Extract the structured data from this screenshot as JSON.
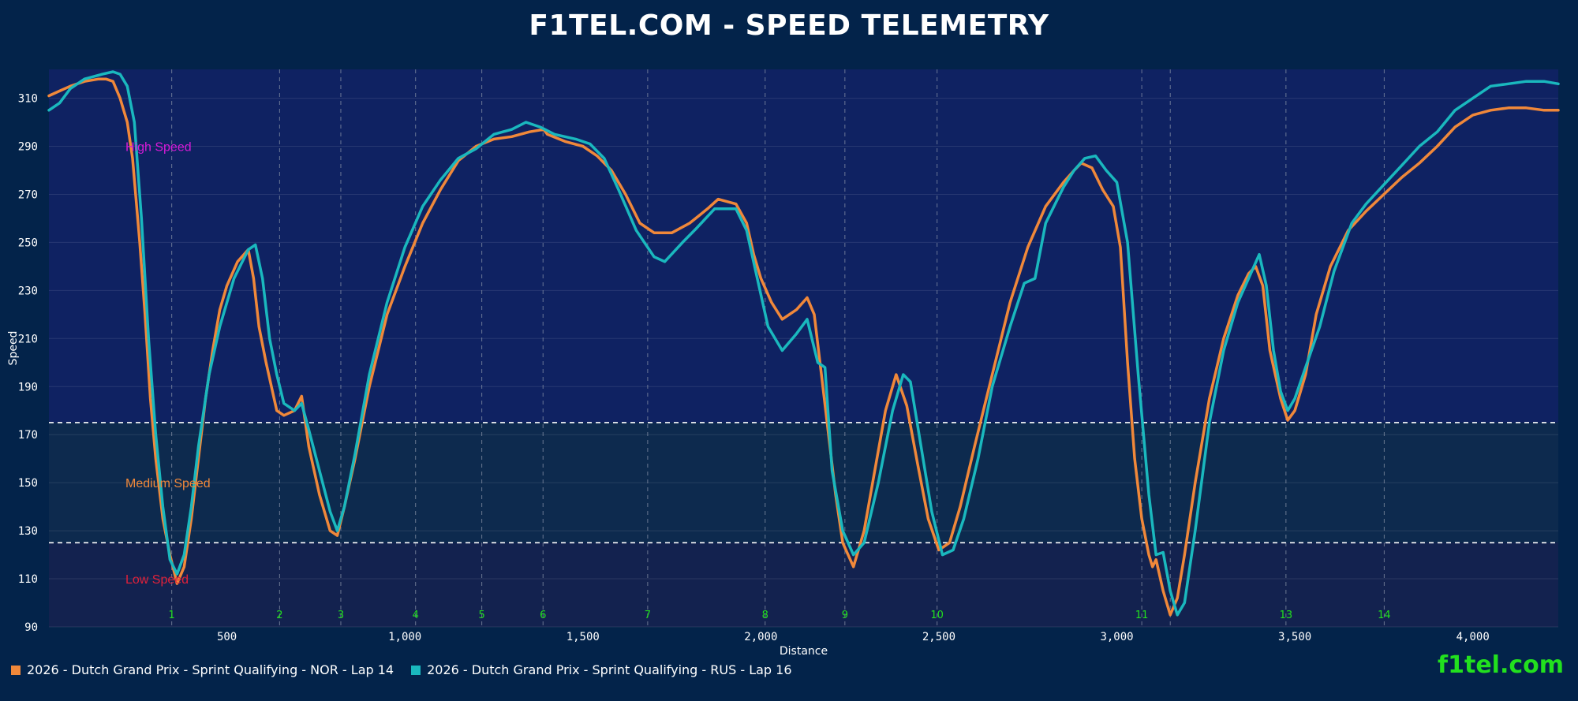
{
  "title": "F1TEL.COM - SPEED TELEMETRY",
  "brand": "f1tel.com",
  "colors": {
    "background": "#03234a",
    "plot_high": "#0f2262",
    "plot_medium": "#0d2a4e",
    "plot_low": "#13224f",
    "nor": "#f0883a",
    "rus": "#1ab8be",
    "corner": "#22e01e",
    "band_high": "#d81ad8",
    "band_medium": "#f0883a",
    "band_low": "#e0213a"
  },
  "chart_data": {
    "type": "line",
    "xlabel": "Distance",
    "ylabel": "Speed",
    "xlim": [
      0,
      4240
    ],
    "ylim": [
      90,
      322
    ],
    "x_ticks": [
      500,
      1000,
      1500,
      2000,
      2500,
      3000,
      3500,
      4000
    ],
    "x_tick_labels": [
      "500",
      "1,000",
      "1,500",
      "2,000",
      "2,500",
      "3,000",
      "3,500",
      "4,000"
    ],
    "y_ticks": [
      90,
      110,
      130,
      150,
      170,
      190,
      210,
      230,
      250,
      270,
      290,
      310
    ],
    "grid": true,
    "thresholds": [
      175,
      125
    ],
    "bands": [
      {
        "label": "High Speed",
        "y": 290,
        "x": 215
      },
      {
        "label": "Medium Speed",
        "y": 150,
        "x": 215
      },
      {
        "label": "Low Speed",
        "y": 110,
        "x": 215
      }
    ],
    "corners": [
      {
        "label": "1",
        "x": 345
      },
      {
        "label": "2",
        "x": 648
      },
      {
        "label": "3",
        "x": 820
      },
      {
        "label": "4",
        "x": 1030
      },
      {
        "label": "5",
        "x": 1216
      },
      {
        "label": "6",
        "x": 1388
      },
      {
        "label": "7",
        "x": 1682
      },
      {
        "label": "8",
        "x": 2012
      },
      {
        "label": "9",
        "x": 2236
      },
      {
        "label": "10",
        "x": 2495
      },
      {
        "label": "11",
        "x": 3070
      },
      {
        "label": "",
        "x": 3150
      },
      {
        "label": "13",
        "x": 3475
      },
      {
        "label": "14",
        "x": 3751
      }
    ],
    "legend": [
      "2026 - Dutch Grand Prix - Sprint Qualifying - NOR - Lap 14",
      "2026 - Dutch Grand Prix - Sprint Qualifying - RUS - Lap 16"
    ],
    "series": [
      {
        "name": "2026 - Dutch Grand Prix - Sprint Qualifying - NOR - Lap 14",
        "points": [
          [
            0,
            311
          ],
          [
            30,
            313
          ],
          [
            60,
            315
          ],
          [
            100,
            317
          ],
          [
            140,
            318
          ],
          [
            160,
            318
          ],
          [
            180,
            317
          ],
          [
            200,
            310
          ],
          [
            220,
            300
          ],
          [
            235,
            285
          ],
          [
            255,
            250
          ],
          [
            270,
            220
          ],
          [
            285,
            185
          ],
          [
            300,
            160
          ],
          [
            320,
            135
          ],
          [
            340,
            120
          ],
          [
            360,
            108
          ],
          [
            380,
            115
          ],
          [
            400,
            135
          ],
          [
            420,
            160
          ],
          [
            440,
            185
          ],
          [
            460,
            205
          ],
          [
            480,
            222
          ],
          [
            500,
            232
          ],
          [
            530,
            242
          ],
          [
            560,
            247
          ],
          [
            575,
            235
          ],
          [
            590,
            215
          ],
          [
            610,
            200
          ],
          [
            640,
            180
          ],
          [
            660,
            178
          ],
          [
            690,
            180
          ],
          [
            710,
            186
          ],
          [
            730,
            165
          ],
          [
            760,
            145
          ],
          [
            790,
            130
          ],
          [
            810,
            128
          ],
          [
            830,
            140
          ],
          [
            860,
            160
          ],
          [
            900,
            190
          ],
          [
            950,
            220
          ],
          [
            1000,
            240
          ],
          [
            1050,
            258
          ],
          [
            1100,
            272
          ],
          [
            1150,
            284
          ],
          [
            1200,
            290
          ],
          [
            1250,
            293
          ],
          [
            1300,
            294
          ],
          [
            1350,
            296
          ],
          [
            1390,
            297
          ],
          [
            1400,
            295
          ],
          [
            1450,
            292
          ],
          [
            1500,
            290
          ],
          [
            1540,
            286
          ],
          [
            1580,
            280
          ],
          [
            1620,
            270
          ],
          [
            1660,
            258
          ],
          [
            1700,
            254
          ],
          [
            1750,
            254
          ],
          [
            1800,
            258
          ],
          [
            1850,
            264
          ],
          [
            1880,
            268
          ],
          [
            1930,
            266
          ],
          [
            1960,
            258
          ],
          [
            1980,
            245
          ],
          [
            2000,
            235
          ],
          [
            2030,
            225
          ],
          [
            2060,
            218
          ],
          [
            2100,
            222
          ],
          [
            2130,
            227
          ],
          [
            2150,
            220
          ],
          [
            2170,
            195
          ],
          [
            2190,
            170
          ],
          [
            2210,
            145
          ],
          [
            2230,
            125
          ],
          [
            2260,
            115
          ],
          [
            2290,
            130
          ],
          [
            2320,
            155
          ],
          [
            2350,
            180
          ],
          [
            2380,
            195
          ],
          [
            2410,
            182
          ],
          [
            2440,
            158
          ],
          [
            2470,
            135
          ],
          [
            2500,
            122
          ],
          [
            2530,
            125
          ],
          [
            2560,
            140
          ],
          [
            2600,
            165
          ],
          [
            2650,
            195
          ],
          [
            2700,
            225
          ],
          [
            2750,
            248
          ],
          [
            2800,
            265
          ],
          [
            2850,
            275
          ],
          [
            2880,
            280
          ],
          [
            2900,
            283
          ],
          [
            2930,
            281
          ],
          [
            2960,
            272
          ],
          [
            2990,
            265
          ],
          [
            3010,
            248
          ],
          [
            3030,
            200
          ],
          [
            3050,
            160
          ],
          [
            3070,
            135
          ],
          [
            3090,
            120
          ],
          [
            3100,
            115
          ],
          [
            3110,
            118
          ],
          [
            3130,
            105
          ],
          [
            3150,
            95
          ],
          [
            3170,
            102
          ],
          [
            3190,
            120
          ],
          [
            3220,
            150
          ],
          [
            3260,
            185
          ],
          [
            3300,
            210
          ],
          [
            3340,
            228
          ],
          [
            3370,
            237
          ],
          [
            3390,
            240
          ],
          [
            3410,
            232
          ],
          [
            3430,
            205
          ],
          [
            3460,
            185
          ],
          [
            3480,
            176
          ],
          [
            3500,
            180
          ],
          [
            3530,
            195
          ],
          [
            3560,
            220
          ],
          [
            3600,
            240
          ],
          [
            3650,
            255
          ],
          [
            3700,
            263
          ],
          [
            3750,
            270
          ],
          [
            3800,
            277
          ],
          [
            3850,
            283
          ],
          [
            3900,
            290
          ],
          [
            3950,
            298
          ],
          [
            4000,
            303
          ],
          [
            4050,
            305
          ],
          [
            4100,
            306
          ],
          [
            4150,
            306
          ],
          [
            4200,
            305
          ],
          [
            4240,
            305
          ]
        ]
      },
      {
        "name": "2026 - Dutch Grand Prix - Sprint Qualifying - RUS - Lap 16",
        "points": [
          [
            0,
            305
          ],
          [
            30,
            308
          ],
          [
            60,
            314
          ],
          [
            100,
            318
          ],
          [
            150,
            320
          ],
          [
            180,
            321
          ],
          [
            200,
            320
          ],
          [
            220,
            315
          ],
          [
            240,
            300
          ],
          [
            260,
            260
          ],
          [
            280,
            210
          ],
          [
            300,
            170
          ],
          [
            320,
            140
          ],
          [
            340,
            118
          ],
          [
            360,
            112
          ],
          [
            380,
            120
          ],
          [
            400,
            140
          ],
          [
            420,
            165
          ],
          [
            450,
            195
          ],
          [
            480,
            215
          ],
          [
            520,
            235
          ],
          [
            560,
            247
          ],
          [
            580,
            249
          ],
          [
            600,
            235
          ],
          [
            620,
            210
          ],
          [
            640,
            195
          ],
          [
            660,
            183
          ],
          [
            690,
            180
          ],
          [
            710,
            183
          ],
          [
            730,
            172
          ],
          [
            760,
            155
          ],
          [
            790,
            138
          ],
          [
            810,
            130
          ],
          [
            830,
            140
          ],
          [
            860,
            162
          ],
          [
            900,
            195
          ],
          [
            950,
            225
          ],
          [
            1000,
            248
          ],
          [
            1050,
            265
          ],
          [
            1100,
            276
          ],
          [
            1150,
            285
          ],
          [
            1200,
            289
          ],
          [
            1250,
            295
          ],
          [
            1300,
            297
          ],
          [
            1340,
            300
          ],
          [
            1380,
            298
          ],
          [
            1420,
            295
          ],
          [
            1480,
            293
          ],
          [
            1520,
            291
          ],
          [
            1560,
            285
          ],
          [
            1600,
            272
          ],
          [
            1650,
            255
          ],
          [
            1700,
            244
          ],
          [
            1730,
            242
          ],
          [
            1780,
            250
          ],
          [
            1820,
            256
          ],
          [
            1870,
            264
          ],
          [
            1930,
            264
          ],
          [
            1960,
            255
          ],
          [
            1990,
            235
          ],
          [
            2020,
            215
          ],
          [
            2060,
            205
          ],
          [
            2100,
            212
          ],
          [
            2130,
            218
          ],
          [
            2160,
            200
          ],
          [
            2180,
            198
          ],
          [
            2200,
            155
          ],
          [
            2230,
            130
          ],
          [
            2260,
            120
          ],
          [
            2290,
            125
          ],
          [
            2330,
            150
          ],
          [
            2370,
            180
          ],
          [
            2400,
            195
          ],
          [
            2420,
            192
          ],
          [
            2450,
            165
          ],
          [
            2480,
            138
          ],
          [
            2510,
            120
          ],
          [
            2540,
            122
          ],
          [
            2570,
            135
          ],
          [
            2610,
            160
          ],
          [
            2650,
            190
          ],
          [
            2700,
            215
          ],
          [
            2740,
            233
          ],
          [
            2770,
            235
          ],
          [
            2800,
            258
          ],
          [
            2850,
            273
          ],
          [
            2880,
            280
          ],
          [
            2910,
            285
          ],
          [
            2940,
            286
          ],
          [
            2970,
            280
          ],
          [
            3000,
            275
          ],
          [
            3030,
            250
          ],
          [
            3060,
            195
          ],
          [
            3090,
            145
          ],
          [
            3110,
            120
          ],
          [
            3130,
            121
          ],
          [
            3150,
            105
          ],
          [
            3170,
            95
          ],
          [
            3190,
            100
          ],
          [
            3220,
            130
          ],
          [
            3260,
            175
          ],
          [
            3300,
            205
          ],
          [
            3340,
            225
          ],
          [
            3370,
            235
          ],
          [
            3400,
            245
          ],
          [
            3420,
            232
          ],
          [
            3440,
            205
          ],
          [
            3460,
            188
          ],
          [
            3480,
            180
          ],
          [
            3500,
            185
          ],
          [
            3530,
            198
          ],
          [
            3570,
            215
          ],
          [
            3610,
            238
          ],
          [
            3660,
            258
          ],
          [
            3700,
            266
          ],
          [
            3750,
            274
          ],
          [
            3800,
            282
          ],
          [
            3850,
            290
          ],
          [
            3900,
            296
          ],
          [
            3950,
            305
          ],
          [
            4000,
            310
          ],
          [
            4050,
            315
          ],
          [
            4100,
            316
          ],
          [
            4150,
            317
          ],
          [
            4200,
            317
          ],
          [
            4240,
            316
          ]
        ]
      }
    ]
  }
}
